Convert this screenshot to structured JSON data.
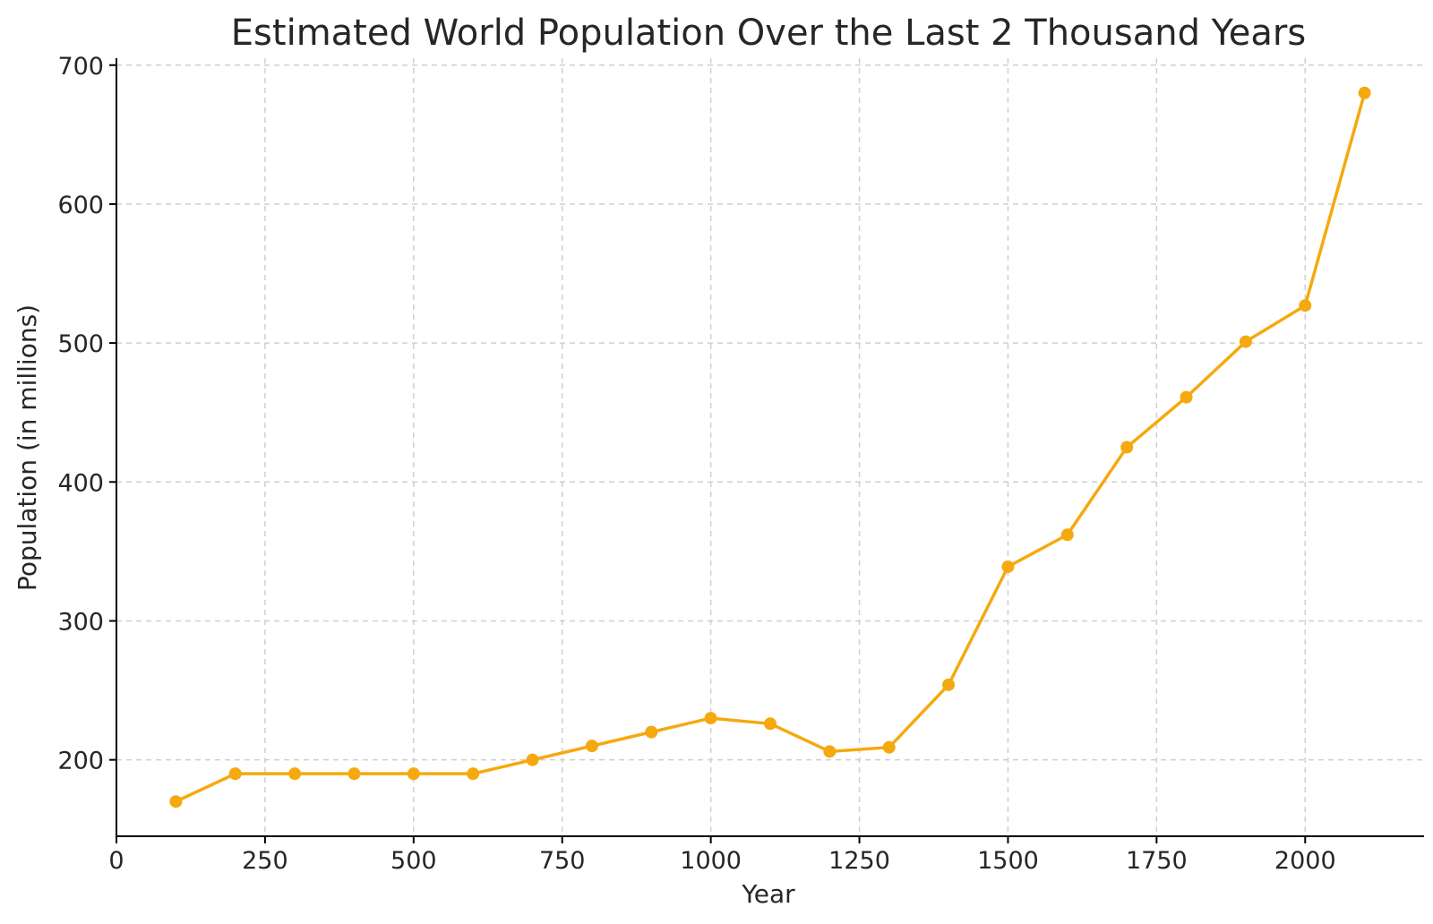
{
  "chart_data": {
    "type": "line",
    "title": "Estimated World Population Over the Last 2 Thousand Years",
    "xlabel": "Year",
    "ylabel": "Population (in millions)",
    "xlim": [
      0,
      2200
    ],
    "ylim": [
      145,
      705
    ],
    "xticks": [
      0,
      250,
      500,
      750,
      1000,
      1250,
      1500,
      1750,
      2000
    ],
    "yticks": [
      200,
      300,
      400,
      500,
      600,
      700
    ],
    "grid": true,
    "legend": "none",
    "color": "#F5A90F",
    "series": [
      {
        "x": [
          100,
          200,
          300,
          400,
          500,
          600,
          700,
          800,
          900,
          1000,
          1100,
          1200,
          1300,
          1400,
          1500,
          1600,
          1700,
          1800,
          1900,
          2000,
          2100
        ],
        "values": [
          170,
          190,
          190,
          190,
          190,
          190,
          200,
          210,
          220,
          230,
          226,
          206,
          209,
          254,
          339,
          362,
          425,
          461,
          501,
          527,
          680
        ]
      }
    ]
  }
}
